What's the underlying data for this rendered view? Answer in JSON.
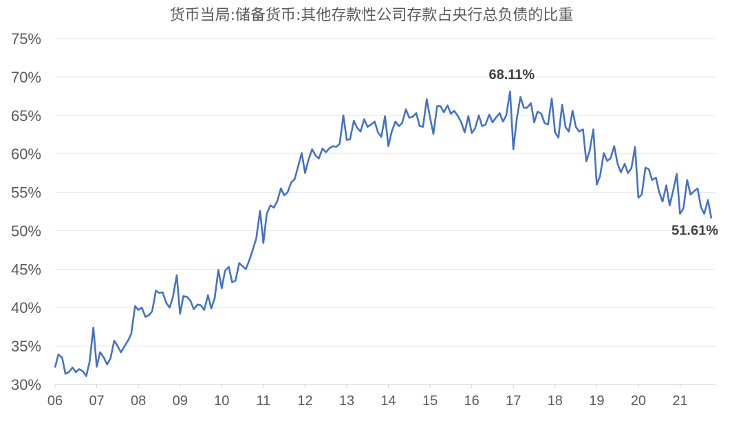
{
  "chart_data": {
    "type": "line",
    "title": "货币当局:储备货币:其他存款性公司存款占央行总负债的比重",
    "xlabel": "",
    "ylabel": "",
    "ylim": [
      30,
      75
    ],
    "yticks": [
      "30%",
      "35%",
      "40%",
      "45%",
      "50%",
      "55%",
      "60%",
      "65%",
      "70%",
      "75%"
    ],
    "ytick_values": [
      30,
      35,
      40,
      45,
      50,
      55,
      60,
      65,
      70,
      75
    ],
    "xticks": [
      "06",
      "07",
      "08",
      "09",
      "10",
      "11",
      "12",
      "13",
      "14",
      "15",
      "16",
      "17",
      "18",
      "19",
      "20",
      "21"
    ],
    "xlim": [
      2006,
      2021.85
    ],
    "grid": true,
    "legend": "none",
    "color": "#4472c4",
    "annotations": [
      {
        "text": "68.11%",
        "x": 2016.96,
        "y": 68.11
      },
      {
        "text": "51.61%",
        "x": 2021.75,
        "y": 51.61
      }
    ],
    "series": [
      {
        "x": [
          2006.0,
          2006.08,
          2006.17,
          2006.25,
          2006.33,
          2006.42,
          2006.5,
          2006.58,
          2006.67,
          2006.75,
          2006.83,
          2006.92,
          2007.0,
          2007.08,
          2007.17,
          2007.25,
          2007.33,
          2007.42,
          2007.5,
          2007.58,
          2007.67,
          2007.75,
          2007.83,
          2007.92,
          2008.0,
          2008.08,
          2008.17,
          2008.25,
          2008.33,
          2008.42,
          2008.5,
          2008.58,
          2008.67,
          2008.75,
          2008.83,
          2008.92,
          2009.0,
          2009.08,
          2009.17,
          2009.25,
          2009.33,
          2009.42,
          2009.5,
          2009.58,
          2009.67,
          2009.75,
          2009.83,
          2009.92,
          2010.0,
          2010.08,
          2010.17,
          2010.25,
          2010.33,
          2010.42,
          2010.5,
          2010.58,
          2010.67,
          2010.75,
          2010.83,
          2010.92,
          2011.0,
          2011.08,
          2011.17,
          2011.25,
          2011.33,
          2011.42,
          2011.5,
          2011.58,
          2011.67,
          2011.75,
          2011.83,
          2011.92,
          2012.0,
          2012.08,
          2012.17,
          2012.25,
          2012.33,
          2012.42,
          2012.5,
          2012.58,
          2012.67,
          2012.75,
          2012.83,
          2012.92,
          2013.0,
          2013.08,
          2013.17,
          2013.25,
          2013.33,
          2013.42,
          2013.5,
          2013.58,
          2013.67,
          2013.75,
          2013.83,
          2013.92,
          2014.0,
          2014.08,
          2014.17,
          2014.25,
          2014.33,
          2014.42,
          2014.5,
          2014.58,
          2014.67,
          2014.75,
          2014.83,
          2014.92,
          2015.0,
          2015.08,
          2015.17,
          2015.25,
          2015.33,
          2015.42,
          2015.5,
          2015.58,
          2015.67,
          2015.75,
          2015.83,
          2015.92,
          2016.0,
          2016.08,
          2016.17,
          2016.25,
          2016.33,
          2016.42,
          2016.5,
          2016.58,
          2016.67,
          2016.75,
          2016.83,
          2016.92,
          2017.0,
          2017.08,
          2017.17,
          2017.25,
          2017.33,
          2017.42,
          2017.5,
          2017.58,
          2017.67,
          2017.75,
          2017.83,
          2017.92,
          2018.0,
          2018.08,
          2018.17,
          2018.25,
          2018.33,
          2018.42,
          2018.5,
          2018.58,
          2018.67,
          2018.75,
          2018.83,
          2018.92,
          2019.0,
          2019.08,
          2019.17,
          2019.25,
          2019.33,
          2019.42,
          2019.5,
          2019.58,
          2019.67,
          2019.75,
          2019.83,
          2019.92,
          2020.0,
          2020.08,
          2020.17,
          2020.25,
          2020.33,
          2020.42,
          2020.5,
          2020.58,
          2020.67,
          2020.75,
          2020.83,
          2020.92,
          2021.0,
          2021.08,
          2021.17,
          2021.25,
          2021.33,
          2021.42,
          2021.5,
          2021.58,
          2021.67,
          2021.75
        ],
        "values": [
          32.2,
          33.9,
          33.5,
          31.4,
          31.6,
          32.2,
          31.6,
          32.0,
          31.7,
          31.1,
          33.0,
          37.4,
          32.3,
          34.2,
          33.5,
          32.6,
          33.4,
          35.7,
          35.0,
          34.2,
          35.0,
          35.7,
          36.6,
          40.2,
          39.7,
          40.0,
          38.8,
          39.0,
          39.5,
          42.2,
          41.9,
          42.0,
          40.6,
          40.0,
          41.4,
          44.2,
          39.2,
          41.5,
          41.4,
          40.9,
          39.8,
          40.4,
          40.3,
          39.7,
          41.6,
          39.9,
          41.2,
          44.9,
          42.5,
          44.8,
          45.3,
          43.3,
          43.5,
          45.8,
          45.4,
          45.0,
          46.3,
          47.6,
          49.0,
          52.6,
          48.4,
          52.2,
          53.3,
          53.0,
          53.8,
          55.5,
          54.6,
          55.0,
          56.3,
          56.7,
          58.3,
          60.1,
          57.5,
          59.2,
          60.6,
          59.8,
          59.4,
          60.7,
          60.2,
          60.7,
          61.0,
          60.9,
          61.3,
          65.0,
          61.8,
          61.9,
          64.3,
          63.4,
          62.9,
          64.5,
          63.5,
          63.8,
          64.2,
          62.8,
          62.2,
          64.9,
          61.0,
          62.9,
          64.2,
          63.6,
          64.0,
          65.8,
          64.7,
          64.8,
          65.3,
          63.6,
          63.5,
          67.1,
          64.7,
          62.6,
          66.2,
          66.2,
          65.4,
          66.3,
          65.2,
          65.6,
          64.9,
          64.1,
          62.8,
          64.9,
          62.7,
          63.3,
          65.0,
          63.6,
          63.8,
          65.1,
          64.1,
          64.7,
          65.3,
          64.2,
          65.0,
          68.11,
          60.6,
          64.5,
          67.4,
          66.0,
          66.0,
          66.6,
          64.1,
          65.5,
          65.2,
          64.0,
          63.8,
          67.2,
          62.8,
          62.1,
          66.4,
          63.5,
          62.9,
          65.6,
          63.5,
          62.9,
          63.2,
          59.0,
          60.4,
          63.2,
          56.0,
          57.1,
          60.1,
          59.1,
          59.4,
          61.0,
          58.7,
          57.6,
          58.7,
          57.5,
          58.1,
          60.9,
          54.3,
          54.7,
          58.2,
          58.0,
          56.6,
          56.9,
          55.0,
          53.8,
          55.9,
          53.3,
          55.1,
          57.4,
          52.2,
          52.9,
          56.6,
          54.7,
          55.1,
          55.5,
          53.1,
          52.2,
          54.0,
          51.61
        ]
      }
    ]
  }
}
